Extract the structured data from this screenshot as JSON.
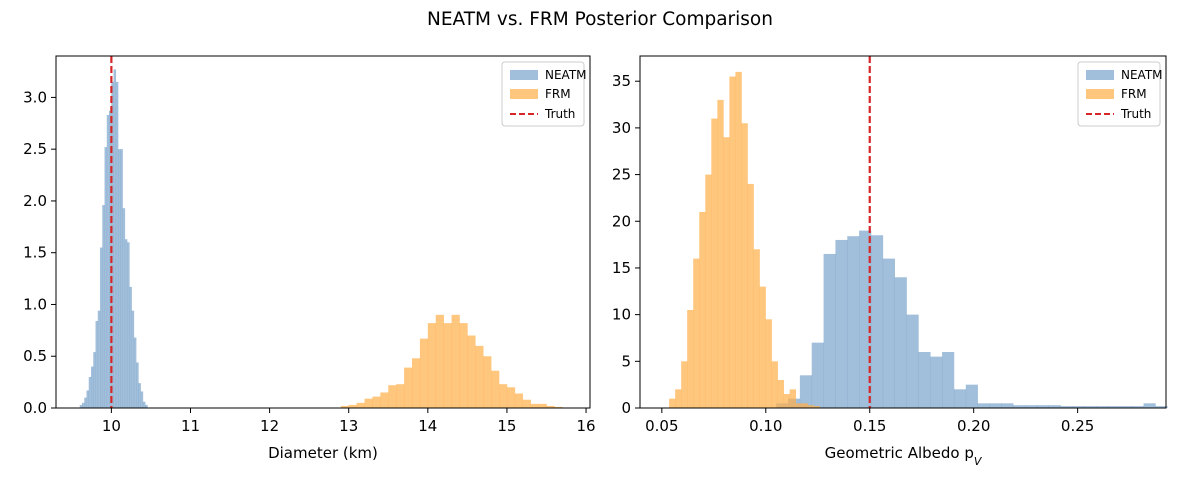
{
  "figure": {
    "title": "NEATM vs. FRM Posterior Comparison"
  },
  "colors": {
    "neatm": "#6f9bc6",
    "frm": "#ffb04c",
    "truth": "#d62728"
  },
  "chart_data": [
    {
      "type": "histogram",
      "xlabel": "Diameter (km)",
      "ylabel": "",
      "xlim": [
        9.3,
        16.05
      ],
      "ylim": [
        0,
        3.4
      ],
      "xticks": [
        "10",
        "11",
        "12",
        "13",
        "14",
        "15",
        "16"
      ],
      "xtick_values": [
        10,
        11,
        12,
        13,
        14,
        15,
        16
      ],
      "yticks": [
        "0.0",
        "0.5",
        "1.0",
        "1.5",
        "2.0",
        "2.5",
        "3.0"
      ],
      "ytick_values": [
        0,
        0.5,
        1.0,
        1.5,
        2.0,
        2.5,
        3.0
      ],
      "truth": 10.0,
      "legend": [
        "NEATM",
        "FRM",
        "Truth"
      ],
      "legend_position": "top-right",
      "series": [
        {
          "name": "NEATM",
          "bin_start": 9.6,
          "bin_width": 0.0285,
          "values": [
            0.03,
            0.05,
            0.1,
            0.17,
            0.3,
            0.4,
            0.54,
            0.84,
            0.94,
            1.55,
            1.96,
            2.52,
            2.83,
            2.87,
            3.15,
            3.27,
            3.15,
            2.5,
            2.5,
            1.93,
            1.63,
            1.6,
            1.17,
            0.94,
            0.68,
            0.44,
            0.24,
            0.16,
            0.06,
            0.03
          ]
        },
        {
          "name": "FRM",
          "bin_start": 12.9,
          "bin_width": 0.1,
          "values": [
            0.02,
            0.03,
            0.05,
            0.09,
            0.11,
            0.15,
            0.22,
            0.23,
            0.39,
            0.48,
            0.67,
            0.82,
            0.9,
            0.82,
            0.9,
            0.82,
            0.7,
            0.6,
            0.5,
            0.36,
            0.23,
            0.2,
            0.14,
            0.08,
            0.04,
            0.04,
            0.02,
            0.01
          ]
        }
      ]
    },
    {
      "type": "histogram",
      "xlabel": "Geometric Albedo p",
      "xlabel_subscript": "V",
      "ylabel": "",
      "xlim": [
        0.0395,
        0.2925
      ],
      "ylim": [
        0,
        37.7
      ],
      "xticks": [
        "0.05",
        "0.10",
        "0.15",
        "0.20",
        "0.25"
      ],
      "xtick_values": [
        0.05,
        0.1,
        0.15,
        0.2,
        0.25
      ],
      "yticks": [
        "0",
        "5",
        "10",
        "15",
        "20",
        "25",
        "30",
        "35"
      ],
      "ytick_values": [
        0,
        5,
        10,
        15,
        20,
        25,
        30,
        35
      ],
      "truth": 0.15,
      "legend": [
        "NEATM",
        "FRM",
        "Truth"
      ],
      "legend_position": "top-right",
      "series": [
        {
          "name": "NEATM",
          "bin_start": 0.105,
          "bin_width": 0.0057,
          "values": [
            0.5,
            1.0,
            3.5,
            7.0,
            16.5,
            18.0,
            18.4,
            19.0,
            18.5,
            16.0,
            14.0,
            10.0,
            6.0,
            5.5,
            6.0,
            2.0,
            2.5,
            0.5,
            0.5,
            0.5,
            0.3,
            0.3,
            0.3,
            0.3,
            0.2,
            0.2,
            0.2,
            0.2,
            0.2,
            0.2,
            0.2,
            0.5,
            0.2
          ]
        },
        {
          "name": "FRM",
          "bin_start": 0.0535,
          "bin_width": 0.0029,
          "values": [
            1.0,
            2.0,
            5.0,
            10.5,
            16.0,
            21.0,
            25.0,
            31.0,
            33.0,
            29.0,
            35.5,
            36.0,
            30.5,
            24.0,
            17.0,
            13.0,
            9.5,
            5.0,
            3.0,
            1.5,
            2.0,
            0.5,
            0.5,
            0.3,
            0.2
          ]
        }
      ]
    }
  ]
}
